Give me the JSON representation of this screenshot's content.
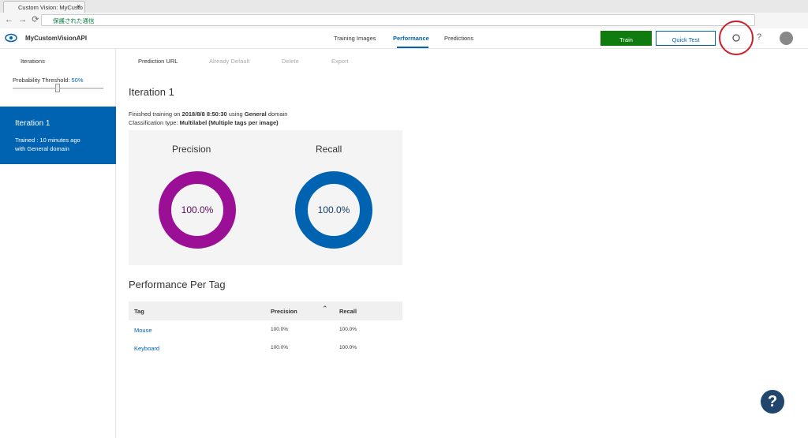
{
  "browser": {
    "tab_title": "Custom Vision: MyCusto",
    "security_label": "保護された通信"
  },
  "header": {
    "app_name": "MyCustomVisionAPI",
    "nav": [
      "Training Images",
      "Performance",
      "Predictions"
    ],
    "train": "Train",
    "quick_test": "Quick Test",
    "help": "?"
  },
  "sidebar": {
    "iterations_label": "Iterations",
    "threshold_label": "Probability Threshold: ",
    "threshold_value": "50%",
    "iteration": {
      "title": "Iteration 1",
      "line1": "Trained : 10 minutes ago",
      "line2": "with General domain"
    }
  },
  "toolbar": [
    "Prediction URL",
    "Already Default",
    "Delete",
    "Export"
  ],
  "iteration": {
    "title": "Iteration 1",
    "finished": [
      "Finished training on ",
      "2018/8/8 8:50:30",
      " using ",
      "General",
      " domain"
    ],
    "classification": [
      "Classification type: ",
      "Multilabel (Multiple tags per image)"
    ]
  },
  "metrics": [
    {
      "label": "Precision",
      "value": "100.0%"
    },
    {
      "label": "Recall",
      "value": "100.0%"
    }
  ],
  "per_tag": {
    "title": "Performance Per Tag",
    "columns": [
      "Tag",
      "Precision",
      "Recall"
    ],
    "rows": [
      [
        "Mouse",
        "100.0%",
        "100.0%"
      ],
      [
        "Keyboard",
        "100.0%",
        "100.0%"
      ]
    ]
  },
  "help_button": "?"
}
